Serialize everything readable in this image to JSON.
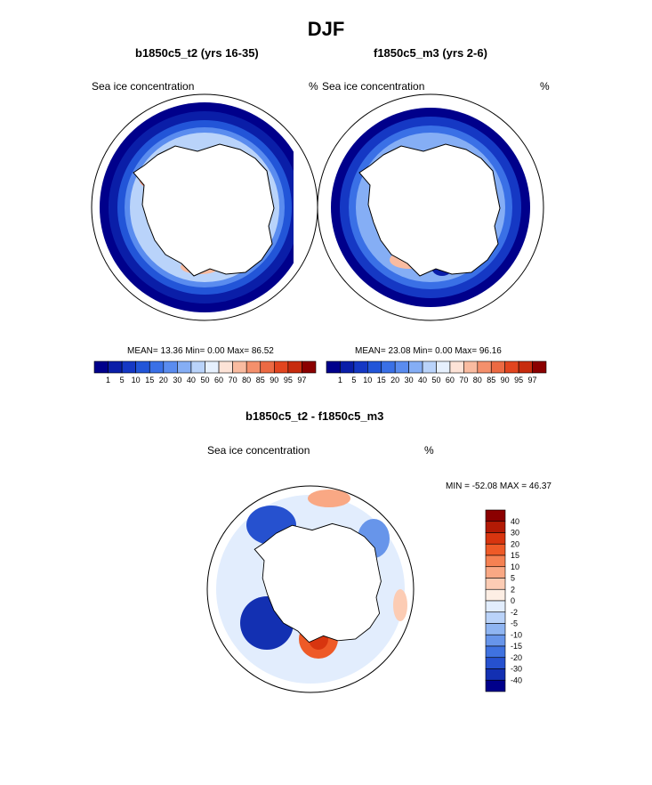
{
  "figure": {
    "title": "DJF"
  },
  "panels": [
    {
      "title": "b1850c5_t2 (yrs 16-35)",
      "left_label": "Sea ice concentration",
      "right_label": "%",
      "stats": {
        "mean_label": "MEAN=",
        "mean": "13.36",
        "min_label": "Min=",
        "min": "0.00",
        "max_label": "Max=",
        "max": "86.52"
      }
    },
    {
      "title": "f1850c5_m3 (yrs 2-6)",
      "left_label": "Sea ice concentration",
      "right_label": "%",
      "stats": {
        "mean_label": "MEAN=",
        "mean": "23.08",
        "min_label": "Min=",
        "min": "0.00",
        "max_label": "Max=",
        "max": "96.16"
      }
    }
  ],
  "abs_colorbar": {
    "ticks": [
      "1",
      "5",
      "10",
      "15",
      "20",
      "30",
      "40",
      "50",
      "60",
      "70",
      "80",
      "85",
      "90",
      "95",
      "97"
    ],
    "colors": [
      "#00008b",
      "#0a1ea8",
      "#1538c4",
      "#2255d8",
      "#3a70e6",
      "#5a8cef",
      "#85aef5",
      "#b9d3fa",
      "#e6f0fd",
      "#fde3d7",
      "#f9bba0",
      "#f4906c",
      "#ec6a43",
      "#e2451f",
      "#c72c0e",
      "#8b0000"
    ]
  },
  "diff_panel": {
    "title": "b1850c5_t2 - f1850c5_m3",
    "left_label": "Sea ice concentration",
    "right_label": "%",
    "minmax": "MIN = -52.08 MAX = 46.37"
  },
  "diff_colorbar": {
    "ticks": [
      "40",
      "30",
      "20",
      "15",
      "10",
      "5",
      "2",
      "0",
      "-2",
      "-5",
      "-10",
      "-15",
      "-20",
      "-30",
      "-40"
    ],
    "colors": [
      "#8b0000",
      "#b21a05",
      "#d8350f",
      "#ee5a27",
      "#f58152",
      "#f9a884",
      "#fcccb4",
      "#fdeee4",
      "#e2edfd",
      "#bad3f9",
      "#8fb5f2",
      "#6795ea",
      "#3f72e0",
      "#2651cf",
      "#1330b2",
      "#00008b"
    ]
  }
}
